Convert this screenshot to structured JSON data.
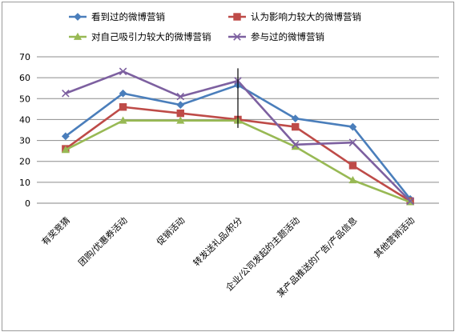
{
  "chart_data": {
    "type": "line",
    "categories": [
      "有奖竞猜",
      "团购/优惠券活动",
      "促销活动",
      "转发送礼品/积分",
      "企业/公司发起的主题活动",
      "某产品推送的广告/产品信息",
      "其他营销活动"
    ],
    "series": [
      {
        "name": "看到过的微博营销",
        "color": "#4a7ebb",
        "marker": "diamond",
        "values": [
          32,
          52.5,
          47,
          56.5,
          40.5,
          36.5,
          2
        ]
      },
      {
        "name": "认为影响力较大的微博营销",
        "color": "#be4b48",
        "marker": "square",
        "values": [
          26,
          46,
          43,
          40,
          36.5,
          18,
          1
        ]
      },
      {
        "name": "对自己吸引力较大的微博营销",
        "color": "#98b954",
        "marker": "triangle",
        "values": [
          25.5,
          39.5,
          39.5,
          39.5,
          27,
          11,
          0.5
        ]
      },
      {
        "name": "参与过的微博营销",
        "color": "#7d60a0",
        "marker": "x",
        "values": [
          52.5,
          63,
          51,
          58.5,
          28,
          29,
          1
        ]
      }
    ],
    "ylim": [
      0,
      70
    ],
    "yticks": [
      0,
      10,
      20,
      30,
      40,
      50,
      60,
      70
    ],
    "grid": true,
    "legend": "top",
    "annotations": [
      "vertical marker line at 转发送礼品/积分"
    ]
  }
}
